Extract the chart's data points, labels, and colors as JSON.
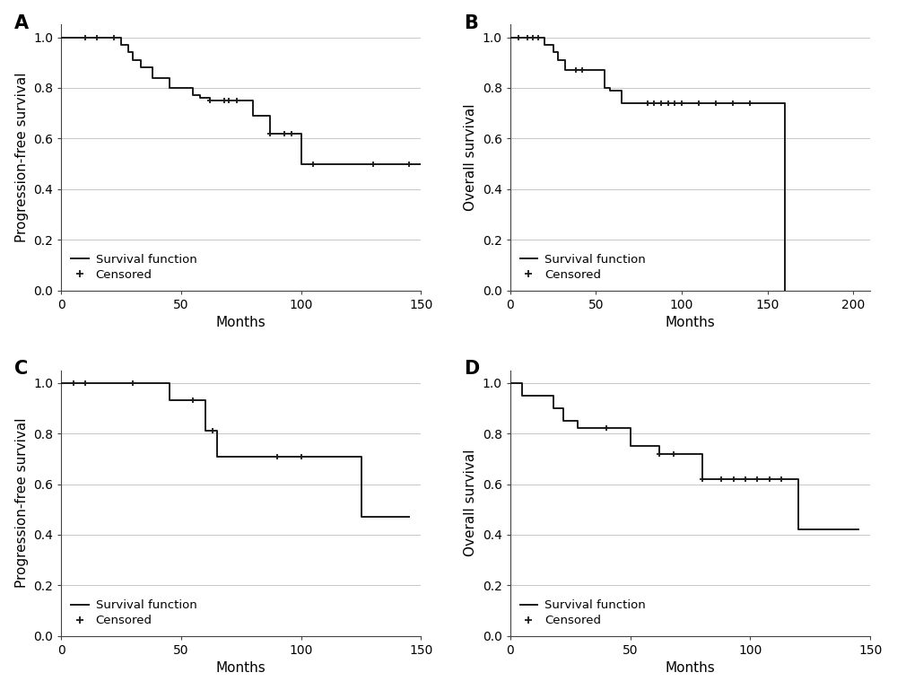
{
  "panel_A": {
    "label": "A",
    "ylabel": "Progression-free survival",
    "xlabel": "Months",
    "xlim": [
      0,
      150
    ],
    "ylim": [
      0.0,
      1.05
    ],
    "xticks": [
      0,
      50,
      100,
      150
    ],
    "yticks": [
      0.0,
      0.2,
      0.4,
      0.6,
      0.8,
      1.0
    ],
    "step_x": [
      0,
      10,
      15,
      22,
      25,
      28,
      30,
      33,
      35,
      38,
      40,
      45,
      50,
      55,
      58,
      62,
      65,
      68,
      70,
      73,
      75,
      80,
      83,
      87,
      90,
      93,
      96,
      100,
      105,
      130,
      145,
      150
    ],
    "step_y": [
      1.0,
      1.0,
      1.0,
      1.0,
      0.97,
      0.94,
      0.91,
      0.88,
      0.88,
      0.84,
      0.84,
      0.8,
      0.8,
      0.77,
      0.76,
      0.75,
      0.75,
      0.75,
      0.75,
      0.75,
      0.75,
      0.69,
      0.69,
      0.62,
      0.62,
      0.62,
      0.62,
      0.5,
      0.5,
      0.5,
      0.5,
      0.5
    ],
    "censor_x": [
      10,
      15,
      22,
      62,
      68,
      70,
      73,
      87,
      93,
      96,
      105,
      130,
      145
    ],
    "censor_y": [
      1.0,
      1.0,
      1.0,
      0.75,
      0.75,
      0.75,
      0.75,
      0.62,
      0.62,
      0.62,
      0.5,
      0.5,
      0.5
    ]
  },
  "panel_B": {
    "label": "B",
    "ylabel": "Overall survival",
    "xlabel": "Months",
    "xlim": [
      0,
      210
    ],
    "ylim": [
      0.0,
      1.05
    ],
    "xticks": [
      0,
      50,
      100,
      150,
      200
    ],
    "yticks": [
      0.0,
      0.2,
      0.4,
      0.6,
      0.8,
      1.0
    ],
    "step_x": [
      0,
      5,
      10,
      13,
      16,
      20,
      25,
      28,
      32,
      38,
      42,
      55,
      58,
      62,
      65,
      70,
      75,
      80,
      84,
      88,
      92,
      96,
      100,
      110,
      120,
      130,
      140,
      155,
      160
    ],
    "step_y": [
      1.0,
      1.0,
      1.0,
      1.0,
      1.0,
      0.97,
      0.94,
      0.91,
      0.87,
      0.87,
      0.87,
      0.8,
      0.79,
      0.79,
      0.74,
      0.74,
      0.74,
      0.74,
      0.74,
      0.74,
      0.74,
      0.74,
      0.74,
      0.74,
      0.74,
      0.74,
      0.74,
      0.74,
      0.0
    ],
    "censor_x": [
      5,
      10,
      13,
      16,
      38,
      42,
      80,
      84,
      88,
      92,
      96,
      100,
      110,
      120,
      130,
      140
    ],
    "censor_y": [
      1.0,
      1.0,
      1.0,
      1.0,
      0.87,
      0.87,
      0.74,
      0.74,
      0.74,
      0.74,
      0.74,
      0.74,
      0.74,
      0.74,
      0.74,
      0.74
    ]
  },
  "panel_C": {
    "label": "C",
    "ylabel": "Progression-free survival",
    "xlabel": "Months",
    "xlim": [
      0,
      150
    ],
    "ylim": [
      0.0,
      1.05
    ],
    "xticks": [
      0,
      50,
      100,
      150
    ],
    "yticks": [
      0.0,
      0.2,
      0.4,
      0.6,
      0.8,
      1.0
    ],
    "step_x": [
      0,
      5,
      10,
      30,
      35,
      40,
      45,
      50,
      55,
      60,
      63,
      65,
      68,
      70,
      90,
      100,
      120,
      125,
      140,
      145
    ],
    "step_y": [
      1.0,
      1.0,
      1.0,
      1.0,
      1.0,
      1.0,
      0.93,
      0.93,
      0.93,
      0.81,
      0.81,
      0.71,
      0.71,
      0.71,
      0.71,
      0.71,
      0.71,
      0.47,
      0.47,
      0.47
    ],
    "censor_x": [
      5,
      10,
      30,
      55,
      63,
      90,
      100
    ],
    "censor_y": [
      1.0,
      1.0,
      1.0,
      0.93,
      0.81,
      0.71,
      0.71
    ]
  },
  "panel_D": {
    "label": "D",
    "ylabel": "Overall survival",
    "xlabel": "Months",
    "xlim": [
      0,
      150
    ],
    "ylim": [
      0.0,
      1.05
    ],
    "xticks": [
      0,
      50,
      100,
      150
    ],
    "yticks": [
      0.0,
      0.2,
      0.4,
      0.6,
      0.8,
      1.0
    ],
    "step_x": [
      0,
      5,
      10,
      18,
      22,
      28,
      35,
      40,
      50,
      55,
      62,
      68,
      75,
      80,
      88,
      93,
      98,
      103,
      108,
      113,
      120,
      125,
      130,
      140,
      145
    ],
    "step_y": [
      1.0,
      0.95,
      0.95,
      0.9,
      0.85,
      0.82,
      0.82,
      0.82,
      0.75,
      0.75,
      0.72,
      0.72,
      0.72,
      0.62,
      0.62,
      0.62,
      0.62,
      0.62,
      0.62,
      0.62,
      0.42,
      0.42,
      0.42,
      0.42,
      0.42
    ],
    "censor_x": [
      40,
      62,
      68,
      80,
      88,
      93,
      98,
      103,
      108,
      113
    ],
    "censor_y": [
      0.82,
      0.72,
      0.72,
      0.62,
      0.62,
      0.62,
      0.62,
      0.62,
      0.62,
      0.62
    ]
  },
  "line_color": "#1a1a1a",
  "censor_color": "#1a1a1a",
  "bg_color": "#ffffff",
  "grid_color": "#c8c8c8",
  "label_fontsize": 11,
  "tick_fontsize": 10,
  "panel_label_fontsize": 15,
  "legend_fontsize": 9.5,
  "line_width": 1.4
}
